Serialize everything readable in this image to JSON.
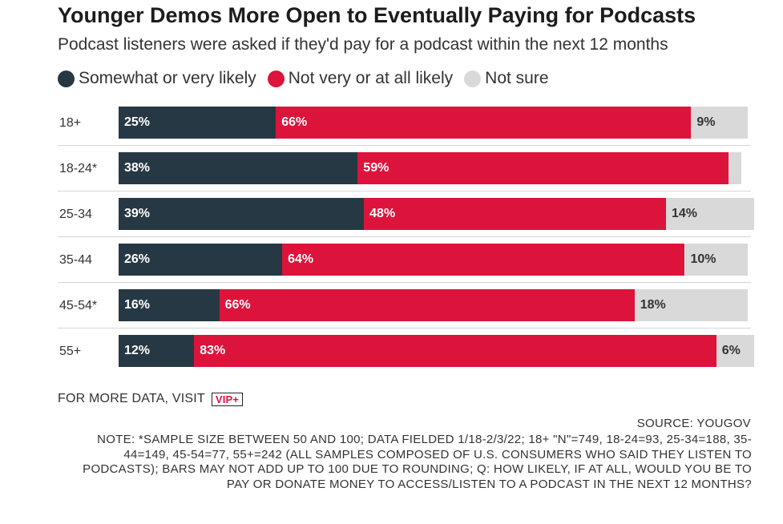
{
  "chart_data": {
    "type": "bar",
    "orientation": "horizontal",
    "stacked": true,
    "title": "Younger Demos More Open to Eventually Paying for Podcasts",
    "subtitle": "Podcast listeners were asked if they'd pay for a podcast within the next 12 months",
    "legend_placement": "top-left",
    "categories": [
      "18+",
      "18-24*",
      "25-34",
      "35-44",
      "45-54*",
      "55+"
    ],
    "series": [
      {
        "name": "Somewhat or very likely",
        "color": "#263843",
        "values": [
          25,
          38,
          39,
          26,
          16,
          12
        ],
        "labels": [
          "25%",
          "38%",
          "39%",
          "26%",
          "16%",
          "12%"
        ]
      },
      {
        "name": "Not very or at all likely",
        "color": "#dc143c",
        "values": [
          66,
          59,
          48,
          64,
          66,
          83
        ],
        "labels": [
          "66%",
          "59%",
          "48%",
          "64%",
          "66%",
          "83%"
        ]
      },
      {
        "name": "Not sure",
        "color": "#d9d9d9",
        "values": [
          9,
          2,
          14,
          10,
          18,
          6
        ],
        "labels": [
          "9%",
          "",
          "14%",
          "10%",
          "18%",
          "6%"
        ]
      }
    ],
    "xlim": [
      0,
      101
    ]
  },
  "footer": {
    "more_data": "FOR MORE DATA, VISIT",
    "vip_badge": "VIP+",
    "source": "SOURCE: YOUGOV",
    "note": "NOTE: *SAMPLE SIZE BETWEEN 50 AND 100; DATA FIELDED 1/18-2/3/22; 18+ \"N\"=749, 18-24=93, 25-34=188, 35-44=149, 45-54=77, 55+=242 (ALL SAMPLES COMPOSED OF U.S. CONSUMERS WHO SAID THEY LISTEN TO PODCASTS); BARS MAY NOT ADD UP TO 100 DUE TO ROUNDING; Q: HOW LIKELY, IF AT ALL, WOULD YOU BE TO PAY OR DONATE MONEY TO ACCESS/LISTEN TO A PODCAST IN THE NEXT 12 MONTHS?"
  }
}
